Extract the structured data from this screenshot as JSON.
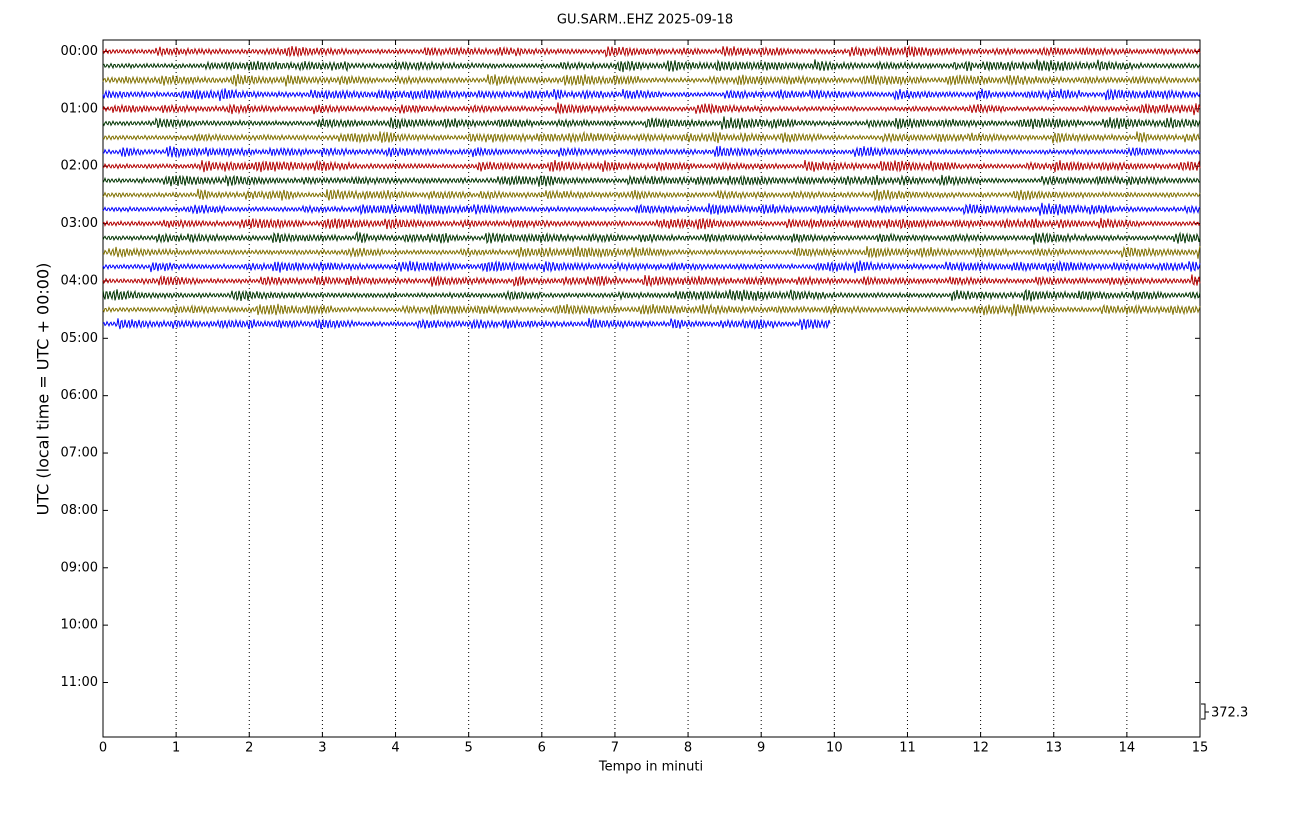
{
  "chart_data": {
    "type": "helicorder",
    "title": "GU.SARM..EHZ 2025-09-18",
    "x_label": "Tempo in minuti",
    "y_label": "UTC (local time = UTC + 00:00)",
    "xlim": [
      0,
      15
    ],
    "xticks": [
      0,
      1,
      2,
      3,
      4,
      5,
      6,
      7,
      8,
      9,
      10,
      11,
      12,
      13,
      14,
      15
    ],
    "ylim": [
      -0.2,
      11.95
    ],
    "yticks": [
      {
        "value": 0,
        "label": "00:00"
      },
      {
        "value": 1,
        "label": "01:00"
      },
      {
        "value": 2,
        "label": "02:00"
      },
      {
        "value": 3,
        "label": "03:00"
      },
      {
        "value": 4,
        "label": "04:00"
      },
      {
        "value": 5,
        "label": "05:00"
      },
      {
        "value": 6,
        "label": "06:00"
      },
      {
        "value": 7,
        "label": "07:00"
      },
      {
        "value": 8,
        "label": "08:00"
      },
      {
        "value": 9,
        "label": "09:00"
      },
      {
        "value": 10,
        "label": "10:00"
      },
      {
        "value": 11,
        "label": "11:00"
      }
    ],
    "grid": true,
    "scale": 372.3,
    "series": [
      {
        "y": 0,
        "color": "#b30000",
        "x_end": 15
      },
      {
        "y": 0.25,
        "color": "#003300",
        "x_end": 15
      },
      {
        "y": 0.5,
        "color": "#807000",
        "x_end": 15
      },
      {
        "y": 0.75,
        "color": "#0000ff",
        "x_end": 15
      },
      {
        "y": 1,
        "color": "#b30000",
        "x_end": 15
      },
      {
        "y": 1.25,
        "color": "#003300",
        "x_end": 15
      },
      {
        "y": 1.5,
        "color": "#807000",
        "x_end": 15
      },
      {
        "y": 1.75,
        "color": "#0000ff",
        "x_end": 15
      },
      {
        "y": 2,
        "color": "#b30000",
        "x_end": 15
      },
      {
        "y": 2.25,
        "color": "#003300",
        "x_end": 15
      },
      {
        "y": 2.5,
        "color": "#807000",
        "x_end": 15
      },
      {
        "y": 2.75,
        "color": "#0000ff",
        "x_end": 15
      },
      {
        "y": 3,
        "color": "#b30000",
        "x_end": 15
      },
      {
        "y": 3.25,
        "color": "#003300",
        "x_end": 15
      },
      {
        "y": 3.5,
        "color": "#807000",
        "x_end": 15
      },
      {
        "y": 3.75,
        "color": "#0000ff",
        "x_end": 15
      },
      {
        "y": 4,
        "color": "#b30000",
        "x_end": 15
      },
      {
        "y": 4.25,
        "color": "#003300",
        "x_end": 15
      },
      {
        "y": 4.5,
        "color": "#807000",
        "x_end": 15
      },
      {
        "y": 4.75,
        "color": "#0000ff",
        "x_end": 9.95
      }
    ]
  }
}
